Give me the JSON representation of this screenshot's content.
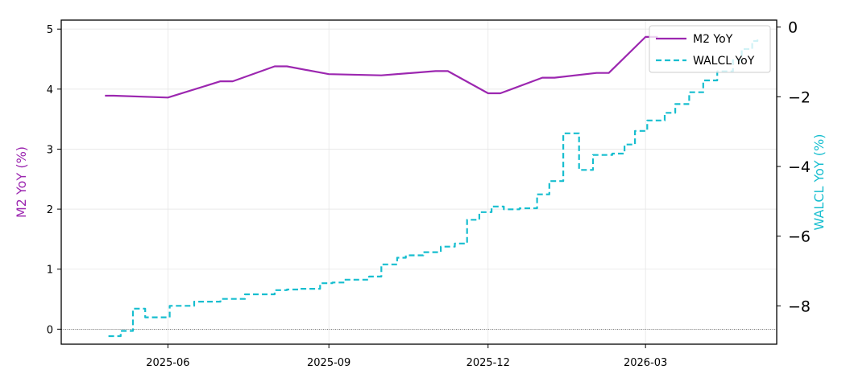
{
  "chart_data": {
    "type": "line",
    "dual_axis": true,
    "grid": true,
    "legend_position": "top-right",
    "x_range": [
      "2025-04-01",
      "2026-05-15"
    ],
    "x_ticks": [
      "2025-06-01",
      "2025-09-01",
      "2025-12-01",
      "2026-03-01"
    ],
    "x_tick_labels": [
      "2025-06",
      "2025-09",
      "2025-12",
      "2026-03"
    ],
    "left_axis": {
      "label": "M2 YoY (%)",
      "ylim": [
        -0.25,
        5.15
      ],
      "ticks": [
        0,
        1,
        2,
        3,
        4,
        5
      ],
      "tick_labels": [
        "0",
        "1",
        "2",
        "3",
        "4",
        "5"
      ],
      "color": "#9c27b0",
      "zero_reference_line": true
    },
    "right_axis": {
      "label": "WALCL YoY (%)",
      "ylim": [
        -9.1,
        0.2
      ],
      "ticks": [
        0,
        -2,
        -4,
        -6,
        -8
      ],
      "tick_labels": [
        "0",
        "−2",
        "−4",
        "−6",
        "−8"
      ],
      "color": "#17becf"
    },
    "series": [
      {
        "name": "M2 YoY",
        "axis": "left",
        "color": "#9c27b0",
        "style": "solid",
        "points": [
          [
            "2025-04-26",
            3.89
          ],
          [
            "2025-05-01",
            3.89
          ],
          [
            "2025-06-01",
            3.86
          ],
          [
            "2025-07-01",
            4.13
          ],
          [
            "2025-07-08",
            4.13
          ],
          [
            "2025-08-01",
            4.38
          ],
          [
            "2025-08-08",
            4.38
          ],
          [
            "2025-09-01",
            4.25
          ],
          [
            "2025-10-01",
            4.23
          ],
          [
            "2025-11-01",
            4.3
          ],
          [
            "2025-11-08",
            4.3
          ],
          [
            "2025-12-01",
            3.93
          ],
          [
            "2025-12-08",
            3.93
          ],
          [
            "2026-01-01",
            4.19
          ],
          [
            "2026-01-08",
            4.19
          ],
          [
            "2026-02-01",
            4.27
          ],
          [
            "2026-02-08",
            4.27
          ],
          [
            "2026-03-01",
            4.87
          ],
          [
            "2026-03-08",
            4.87
          ]
        ]
      },
      {
        "name": "WALCL YoY",
        "axis": "right",
        "color": "#17becf",
        "style": "dashed-step",
        "points": [
          [
            "2025-04-28",
            -8.87
          ],
          [
            "2025-05-05",
            -8.72
          ],
          [
            "2025-05-12",
            -8.08
          ],
          [
            "2025-05-19",
            -8.33
          ],
          [
            "2025-05-26",
            -8.33
          ],
          [
            "2025-06-02",
            -8.0
          ],
          [
            "2025-06-16",
            -7.88
          ],
          [
            "2025-07-01",
            -7.8
          ],
          [
            "2025-07-15",
            -7.67
          ],
          [
            "2025-08-01",
            -7.55
          ],
          [
            "2025-08-08",
            -7.53
          ],
          [
            "2025-08-15",
            -7.51
          ],
          [
            "2025-08-27",
            -7.35
          ],
          [
            "2025-09-03",
            -7.33
          ],
          [
            "2025-09-10",
            -7.25
          ],
          [
            "2025-09-24",
            -7.16
          ],
          [
            "2025-10-01",
            -6.81
          ],
          [
            "2025-10-10",
            -6.62
          ],
          [
            "2025-10-15",
            -6.55
          ],
          [
            "2025-10-25",
            -6.46
          ],
          [
            "2025-11-04",
            -6.3
          ],
          [
            "2025-11-12",
            -6.21
          ],
          [
            "2025-11-19",
            -5.53
          ],
          [
            "2025-11-26",
            -5.31
          ],
          [
            "2025-12-03",
            -5.15
          ],
          [
            "2025-12-10",
            -5.23
          ],
          [
            "2025-12-19",
            -5.2
          ],
          [
            "2025-12-29",
            -4.8
          ],
          [
            "2026-01-05",
            -4.42
          ],
          [
            "2026-01-13",
            -3.05
          ],
          [
            "2026-01-22",
            -4.1
          ],
          [
            "2026-01-30",
            -3.67
          ],
          [
            "2026-02-10",
            -3.63
          ],
          [
            "2026-02-17",
            -3.37
          ],
          [
            "2026-02-23",
            -2.98
          ],
          [
            "2026-03-02",
            -2.68
          ],
          [
            "2026-03-12",
            -2.46
          ],
          [
            "2026-03-18",
            -2.21
          ],
          [
            "2026-03-26",
            -1.87
          ],
          [
            "2026-04-03",
            -1.53
          ],
          [
            "2026-04-11",
            -1.27
          ],
          [
            "2026-04-20",
            -0.95
          ],
          [
            "2026-04-25",
            -0.63
          ],
          [
            "2026-05-01",
            -0.4
          ],
          [
            "2026-05-04",
            -0.28
          ]
        ]
      }
    ]
  }
}
